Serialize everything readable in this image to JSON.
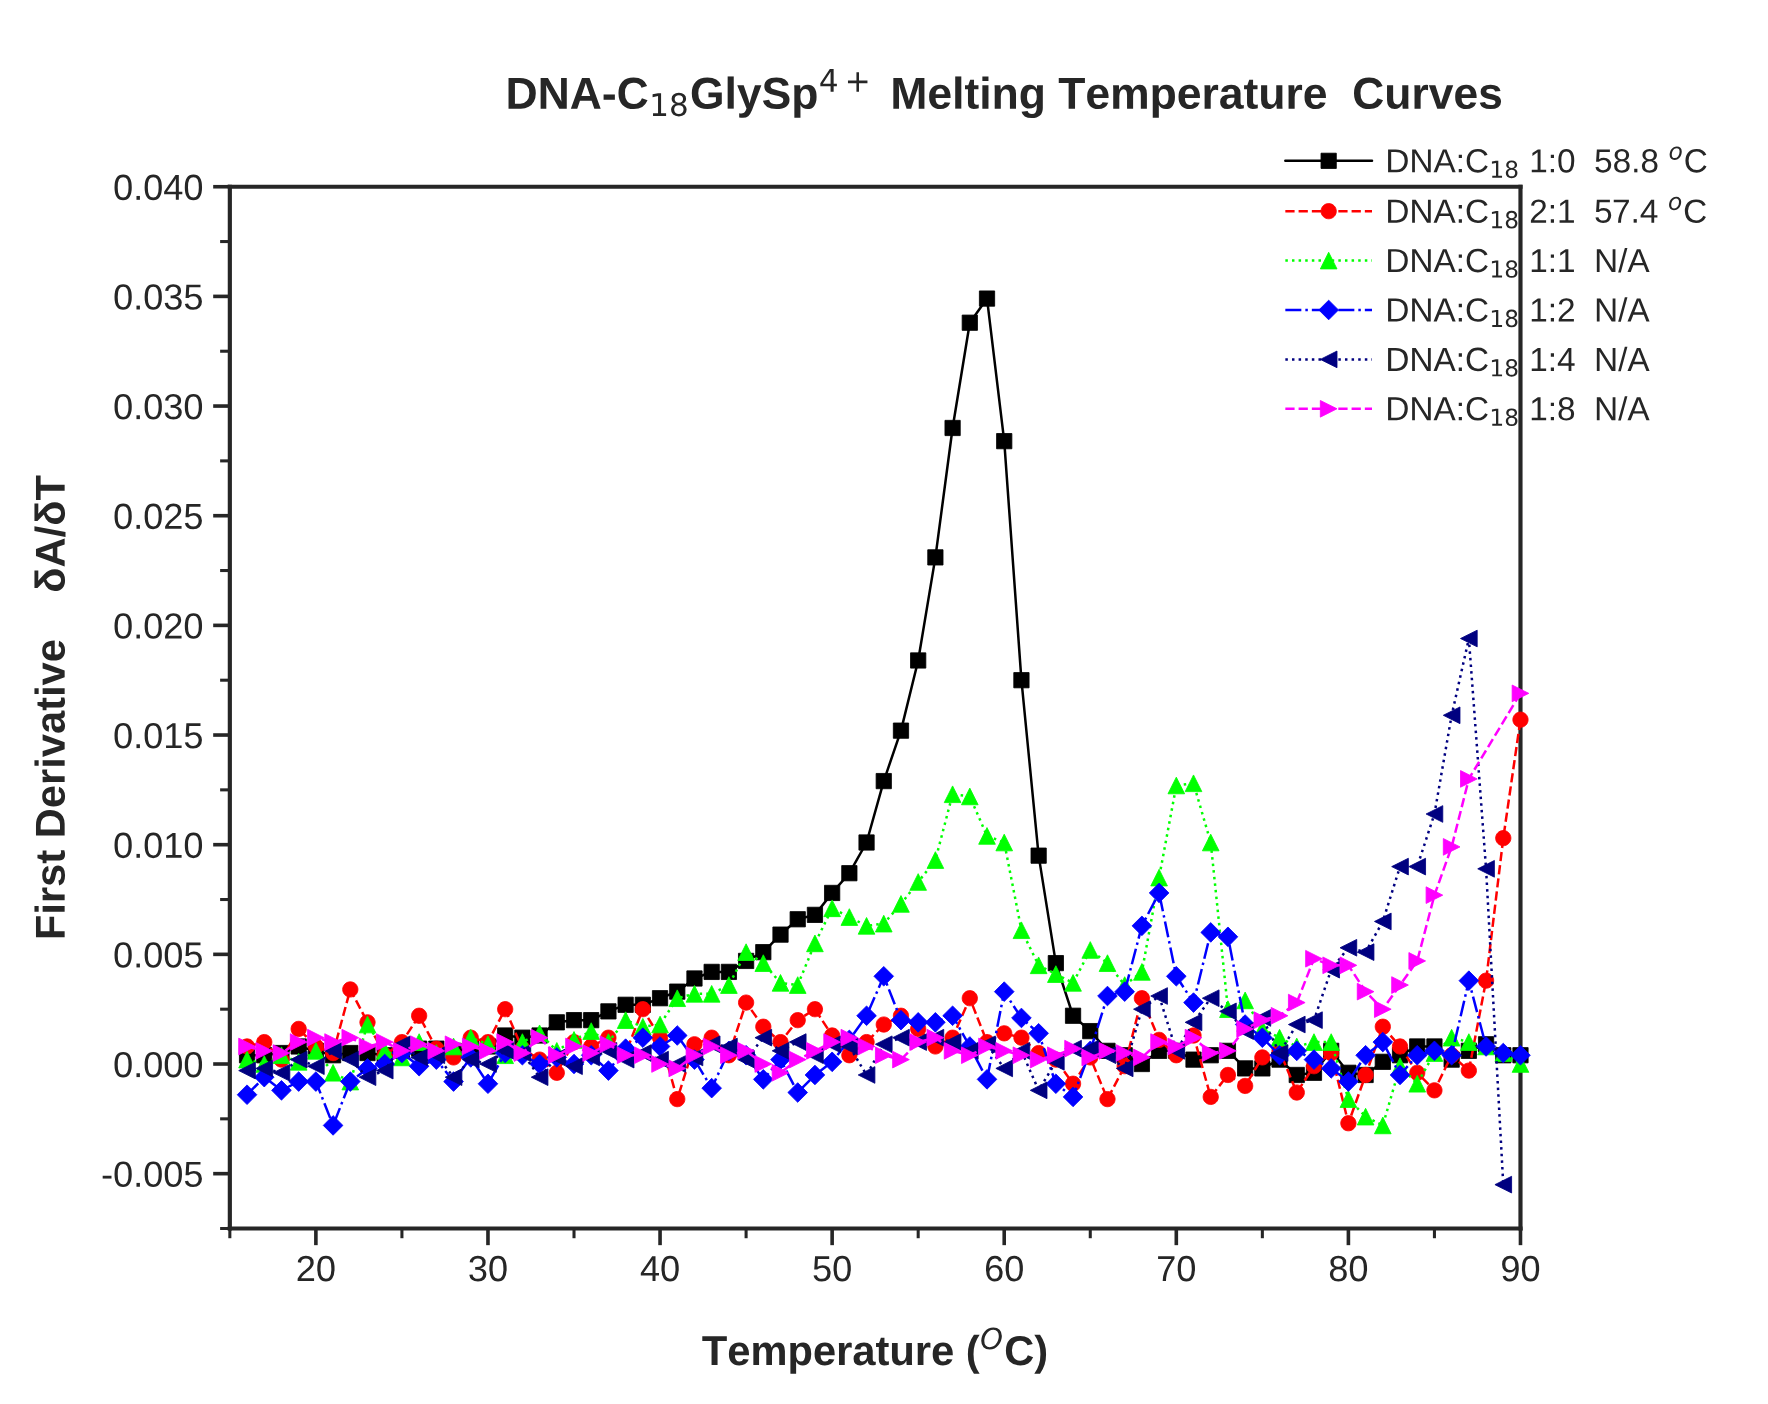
{
  "chart_data": {
    "type": "line",
    "title": "DNA-C$_{18}$GlySp$^{4+}$ Melting Temperature  Curves",
    "xlabel": "Temperature ($^{O}$C)",
    "ylabel": "First Derivative    δA/δT",
    "x": [
      16,
      17,
      18,
      19,
      20,
      21,
      22,
      23,
      24,
      25,
      26,
      27,
      28,
      29,
      30,
      31,
      32,
      33,
      34,
      35,
      36,
      37,
      38,
      39,
      40,
      41,
      42,
      43,
      44,
      45,
      46,
      47,
      48,
      49,
      50,
      51,
      52,
      53,
      54,
      55,
      56,
      57,
      58,
      59,
      60,
      61,
      62,
      63,
      64,
      65,
      66,
      67,
      68,
      69,
      70,
      71,
      72,
      73,
      74,
      75,
      76,
      77,
      78,
      79,
      80,
      81,
      82,
      83,
      84,
      85,
      86,
      87,
      88,
      89,
      90
    ],
    "series": [
      {
        "name": "DNA:C$_{18}$ 1:0  58.8 $^{o}$C",
        "color": "#000000",
        "marker": "square",
        "line_style": "solid",
        "values": [
          0.0004,
          0.0004,
          0.0005,
          0.0008,
          0.0006,
          0.0004,
          0.0005,
          0.0005,
          0.0004,
          0.0006,
          0.0007,
          0.0007,
          0.0006,
          0.0007,
          0.0008,
          0.0013,
          0.0012,
          0.0013,
          0.0019,
          0.002,
          0.002,
          0.0024,
          0.0027,
          0.0027,
          0.003,
          0.0033,
          0.0039,
          0.0042,
          0.0042,
          0.0047,
          0.0051,
          0.0059,
          0.0066,
          0.0068,
          0.0078,
          0.0087,
          0.0101,
          0.0129,
          0.0152,
          0.0184,
          0.0231,
          0.029,
          0.0338,
          0.0349,
          0.0284,
          0.0175,
          0.0095,
          0.0046,
          0.0022,
          0.0015,
          0.0006,
          0.0004,
          0.0,
          0.0006,
          0.0006,
          0.0002,
          0.0004,
          0.0006,
          -0.0002,
          -0.0002,
          0.0002,
          -0.0005,
          -0.0004,
          0.0006,
          -0.0004,
          -0.0005,
          0.0001,
          0.0004,
          0.0008,
          0.0008,
          0.0002,
          0.0006,
          0.0009,
          0.0004,
          0.0004
        ]
      },
      {
        "name": "DNA:C$_{18}$ 2:1  57.4 $^{o}$C",
        "color": "#ff0000",
        "marker": "circle",
        "line_style": "dashed",
        "values": [
          0.0008,
          0.001,
          0.0002,
          0.0016,
          0.0008,
          0.0005,
          0.0034,
          0.0019,
          0.0004,
          0.001,
          0.0022,
          0.0007,
          0.0003,
          0.0012,
          0.001,
          0.0025,
          0.0007,
          0.0002,
          -0.0004,
          0.001,
          0.0008,
          0.0012,
          0.0005,
          0.0025,
          0.0012,
          -0.0016,
          0.0009,
          0.0012,
          0.0004,
          0.0028,
          0.0017,
          0.001,
          0.002,
          0.0025,
          0.0013,
          0.0004,
          0.001,
          0.0018,
          0.0022,
          0.0016,
          0.0008,
          0.0012,
          0.003,
          0.001,
          0.0014,
          0.0012,
          0.0005,
          0.0002,
          -0.0009,
          0.0003,
          -0.0016,
          -0.0001,
          0.003,
          0.0011,
          0.0004,
          0.0013,
          -0.0015,
          -0.0005,
          -0.001,
          0.0003,
          0.0006,
          -0.0013,
          -0.0001,
          0.0005,
          -0.0027,
          -0.0005,
          0.0017,
          0.0008,
          -0.0004,
          -0.0012,
          0.0004,
          -0.0003,
          0.0038,
          0.0103,
          0.0157
        ]
      },
      {
        "name": "DNA:C$_{18}$ 1:1  N/A",
        "color": "#00ff00",
        "marker": "triangle",
        "line_style": "dotted",
        "values": [
          0.0002,
          0.0,
          0.0004,
          0.0001,
          0.0006,
          -0.0004,
          -0.0008,
          0.0018,
          0.0006,
          0.0003,
          0.001,
          0.0005,
          0.0008,
          0.0012,
          0.0009,
          0.0004,
          0.001,
          0.0014,
          0.0006,
          0.0011,
          0.0015,
          0.001,
          0.002,
          0.0017,
          0.0018,
          0.003,
          0.0032,
          0.0032,
          0.0036,
          0.0051,
          0.0046,
          0.0037,
          0.0036,
          0.0055,
          0.0071,
          0.0067,
          0.0063,
          0.0064,
          0.0073,
          0.0083,
          0.0093,
          0.0123,
          0.0122,
          0.0104,
          0.0101,
          0.0061,
          0.0045,
          0.0041,
          0.0037,
          0.0052,
          0.0046,
          0.0036,
          0.0042,
          0.0085,
          0.0127,
          0.0128,
          0.0101,
          0.0025,
          0.0029,
          0.0016,
          0.0012,
          0.0008,
          0.001,
          0.001,
          -0.0016,
          -0.0024,
          -0.0028,
          -0.0001,
          -0.0009,
          0.0005,
          0.0012,
          0.001,
          0.0008,
          0.0005,
          0.0
        ]
      },
      {
        "name": "DNA:C$_{18}$ 1:2  N/A",
        "color": "#0000ff",
        "marker": "diamond",
        "line_style": "dashdot",
        "values": [
          -0.0014,
          -0.0006,
          -0.0012,
          -0.0008,
          -0.0008,
          -0.0028,
          -0.0008,
          -0.0002,
          0.0,
          0.0005,
          -0.0001,
          0.0002,
          -0.0008,
          0.0003,
          -0.0009,
          0.0005,
          0.0004,
          0.0,
          0.0003,
          0.0,
          0.0004,
          -0.0003,
          0.0007,
          0.0012,
          0.0008,
          0.0013,
          0.0002,
          -0.0011,
          0.0006,
          0.0004,
          -0.0007,
          0.0002,
          -0.0013,
          -0.0005,
          0.0001,
          0.0011,
          0.0022,
          0.004,
          0.002,
          0.0019,
          0.0019,
          0.0022,
          0.0008,
          -0.0007,
          0.0033,
          0.0021,
          0.0014,
          -0.0009,
          -0.0015,
          0.0006,
          0.0031,
          0.0033,
          0.0063,
          0.0078,
          0.004,
          0.0028,
          0.006,
          0.0058,
          0.0018,
          0.0012,
          0.0004,
          0.0006,
          0.0002,
          -0.0002,
          -0.0008,
          0.0004,
          0.001,
          -0.0005,
          0.0004,
          0.0006,
          0.0004,
          0.0038,
          0.0008,
          0.0005,
          0.0004
        ]
      },
      {
        "name": "DNA:C$_{18}$ 1:4  N/A",
        "color": "#000080",
        "marker": "triangle-left",
        "line_style": "dotted",
        "values": [
          -0.0003,
          -0.0002,
          -0.0004,
          0.0002,
          -0.0001,
          0.0006,
          0.0002,
          -0.0006,
          -0.0003,
          0.0009,
          0.0003,
          0.0004,
          -0.0006,
          0.0002,
          0.0,
          0.0006,
          0.0005,
          -0.0006,
          0.0003,
          -0.0001,
          0.0003,
          0.0006,
          0.0002,
          0.0005,
          0.0002,
          0.0,
          0.0003,
          0.0009,
          0.0008,
          0.0002,
          0.0012,
          0.0006,
          0.001,
          0.0004,
          0.0009,
          0.0008,
          -0.0005,
          0.0009,
          0.0012,
          0.001,
          0.0012,
          0.001,
          0.0006,
          0.0009,
          -0.0002,
          0.0006,
          -0.0012,
          0.0001,
          0.0007,
          0.0007,
          0.0004,
          -0.0002,
          0.0025,
          0.0031,
          0.0006,
          0.0019,
          0.003,
          0.0024,
          0.0015,
          0.0021,
          0.0005,
          0.0018,
          0.002,
          0.0043,
          0.0053,
          0.0051,
          0.0065,
          0.009,
          0.009,
          0.0114,
          0.0159,
          0.0194,
          0.0089,
          -0.0055,
          null
        ]
      },
      {
        "name": "DNA:C$_{18}$ 1:8  N/A",
        "color": "#ff00ff",
        "marker": "triangle-right",
        "line_style": "dashed",
        "values": [
          0.0008,
          0.0006,
          0.0005,
          0.001,
          0.0012,
          0.001,
          0.0012,
          0.0008,
          0.001,
          0.0006,
          0.0009,
          0.0006,
          0.0009,
          0.0008,
          0.0006,
          0.001,
          0.0005,
          0.0012,
          0.0004,
          0.0008,
          0.0005,
          0.0009,
          0.0004,
          0.0004,
          0.0,
          -0.0002,
          0.0004,
          0.0008,
          0.0004,
          0.0006,
          0.0,
          -0.0004,
          0.0002,
          0.0006,
          0.001,
          0.0012,
          0.0008,
          0.0004,
          0.0002,
          0.001,
          0.0012,
          0.0006,
          0.0004,
          0.0008,
          0.0006,
          0.0004,
          0.0002,
          0.0004,
          0.0007,
          0.0003,
          0.0006,
          0.0005,
          0.0003,
          0.001,
          0.0008,
          0.0012,
          0.0005,
          0.0006,
          0.0016,
          0.002,
          0.0022,
          0.0028,
          0.0048,
          0.0045,
          0.0045,
          0.0033,
          0.0025,
          0.0036,
          0.0047,
          0.0077,
          0.0099,
          0.013,
          null,
          null,
          0.0169
        ]
      }
    ],
    "xlim": [
      15,
      90
    ],
    "xticks": [
      20,
      30,
      40,
      50,
      60,
      70,
      80,
      90
    ],
    "ylim": [
      -0.0075,
      0.04
    ],
    "yticks": [
      {
        "value": -0.005,
        "label": "-0.005"
      },
      {
        "value": 0,
        "label": "0.000"
      },
      {
        "value": 0.005,
        "label": "0.005"
      },
      {
        "value": 0.01,
        "label": "0.010"
      },
      {
        "value": 0.015,
        "label": "0.015"
      },
      {
        "value": 0.02,
        "label": "0.020"
      },
      {
        "value": 0.025,
        "label": "0.025"
      },
      {
        "value": 0.03,
        "label": "0.030"
      },
      {
        "value": 0.035,
        "label": "0.035"
      },
      {
        "value": 0.04,
        "label": "0.040"
      }
    ],
    "grid": false,
    "legend": "top right"
  }
}
